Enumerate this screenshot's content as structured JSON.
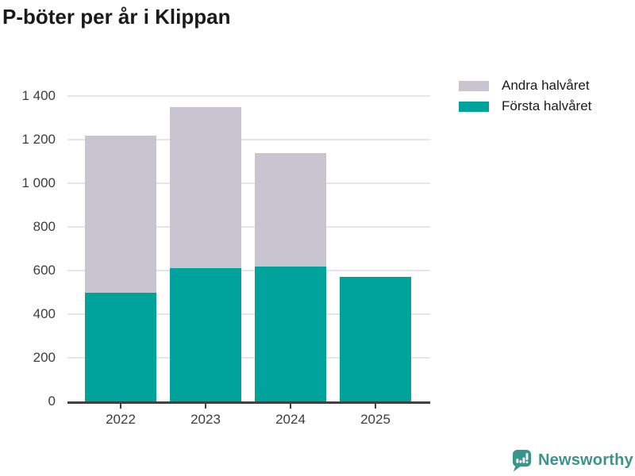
{
  "title": "P-böter per år i Klippan",
  "legend": [
    {
      "label": "Andra halvåret",
      "color": "#c8c5d0"
    },
    {
      "label": "Första halvåret",
      "color": "#00a39b"
    }
  ],
  "chart_data": {
    "type": "bar",
    "stacked": true,
    "title": "P-böter per år i Klippan",
    "categories": [
      "2022",
      "2023",
      "2024",
      "2025"
    ],
    "series": [
      {
        "name": "Första halvåret",
        "color": "#00a39b",
        "values": [
          500,
          610,
          620,
          570
        ]
      },
      {
        "name": "Andra halvåret",
        "color": "#c8c5d0",
        "values": [
          720,
          740,
          520,
          0
        ]
      }
    ],
    "totals": [
      1220,
      1350,
      1140,
      570
    ],
    "ylim": [
      0,
      1400
    ],
    "yticks": [
      0,
      200,
      400,
      600,
      800,
      1000,
      1200,
      1400
    ],
    "ytick_labels": [
      "0",
      "200",
      "400",
      "600",
      "800",
      "1 000",
      "1 200",
      "1 400"
    ],
    "xlabel": "",
    "ylabel": "",
    "grid": true,
    "legend_position": "top-right"
  },
  "branding": {
    "logo_text": "Newsworthy",
    "logo_color": "#3a948e",
    "icon": "newsworthy-bubble-chart-icon"
  },
  "colors": {
    "first_half": "#00a39b",
    "second_half": "#c8c5d0",
    "axis": "#414141",
    "gridline": "#e5e4e8",
    "tick_text": "#3d3d3d",
    "title_text": "#1a1a1a"
  }
}
